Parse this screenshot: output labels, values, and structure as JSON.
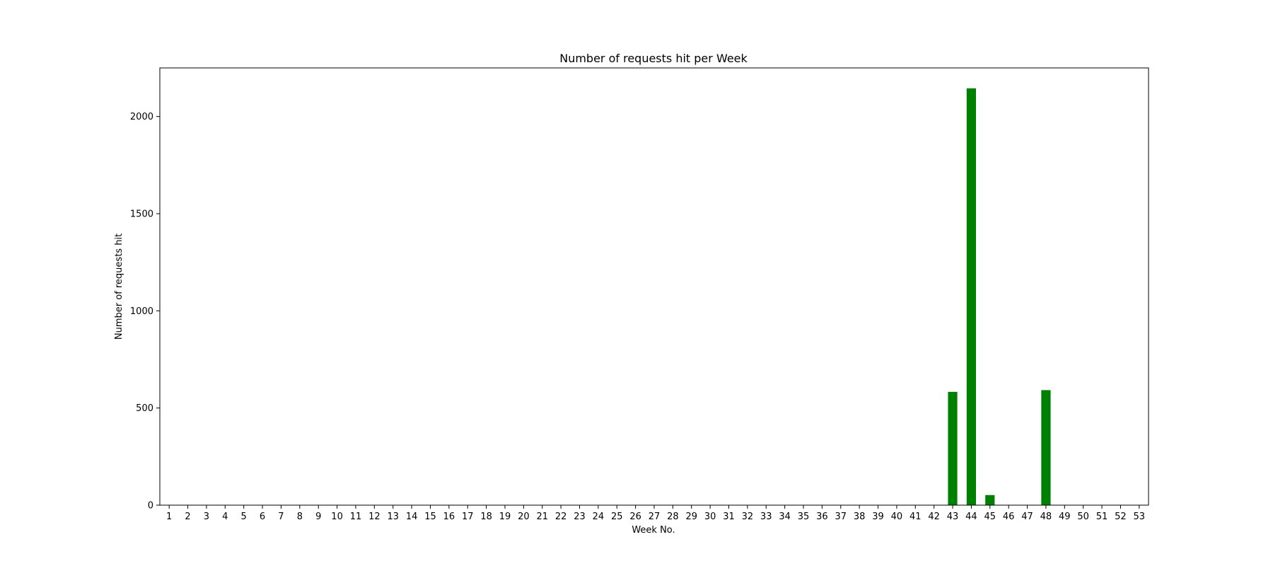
{
  "chart_data": {
    "type": "bar",
    "title": "Number of requests hit per Week",
    "xlabel": "Week No.",
    "ylabel": "Number of requests hit",
    "categories": [
      "1",
      "2",
      "3",
      "4",
      "5",
      "6",
      "7",
      "8",
      "9",
      "10",
      "11",
      "12",
      "13",
      "14",
      "15",
      "16",
      "17",
      "18",
      "19",
      "20",
      "21",
      "22",
      "23",
      "24",
      "25",
      "26",
      "27",
      "28",
      "29",
      "30",
      "31",
      "32",
      "33",
      "34",
      "35",
      "36",
      "37",
      "38",
      "39",
      "40",
      "41",
      "42",
      "43",
      "44",
      "45",
      "46",
      "47",
      "48",
      "49",
      "50",
      "51",
      "52",
      "53"
    ],
    "values": [
      0,
      0,
      0,
      0,
      0,
      0,
      0,
      0,
      0,
      0,
      0,
      0,
      0,
      0,
      0,
      0,
      0,
      0,
      0,
      0,
      0,
      0,
      0,
      0,
      0,
      0,
      0,
      0,
      0,
      0,
      0,
      0,
      0,
      0,
      0,
      0,
      0,
      0,
      0,
      0,
      0,
      0,
      583,
      2145,
      52,
      0,
      0,
      592,
      0,
      0,
      0,
      0,
      0
    ],
    "ylim": [
      0,
      2250
    ],
    "yticks": [
      0,
      500,
      1000,
      1500,
      2000
    ],
    "bar_color": "#008000",
    "grid": false,
    "legend": "none"
  }
}
